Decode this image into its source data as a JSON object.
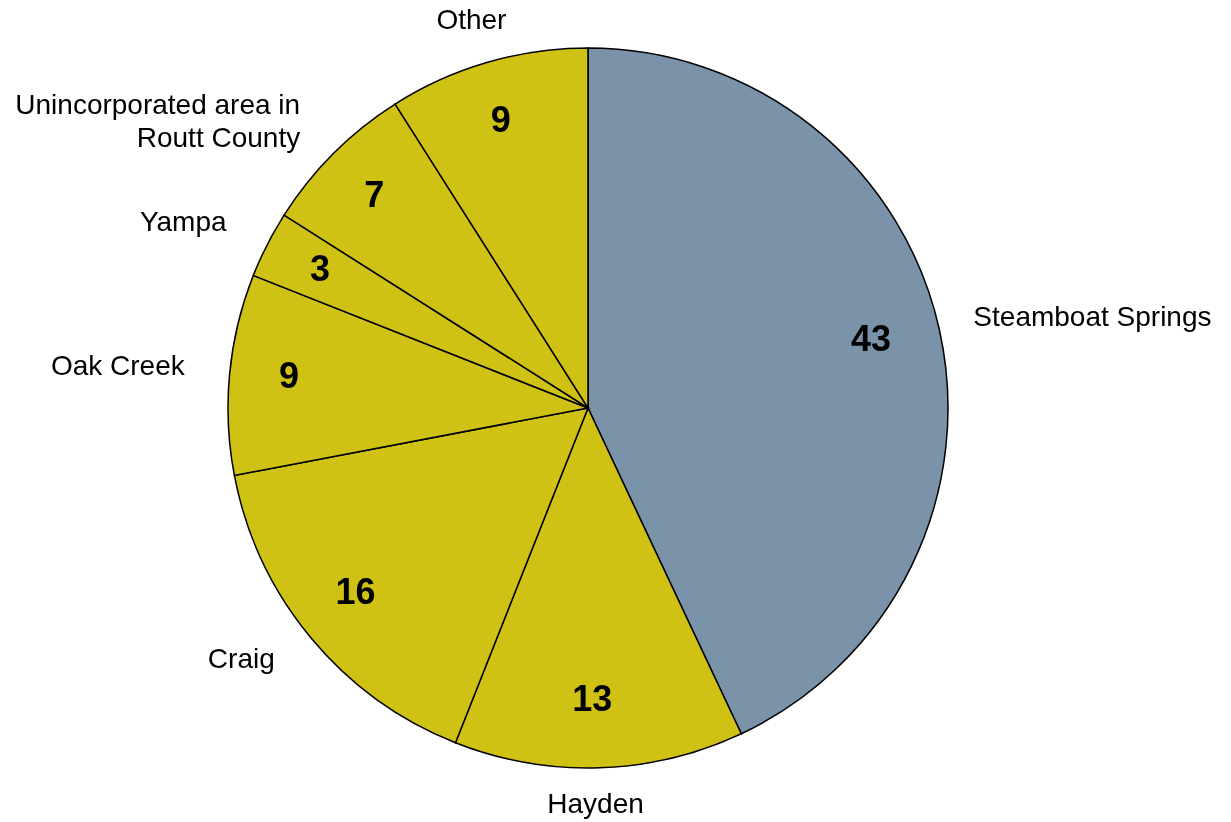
{
  "chart_data": {
    "type": "pie",
    "categories": [
      "Steamboat Springs",
      "Hayden",
      "Craig",
      "Oak Creek",
      "Yampa",
      "Unincorporated area in Routt County",
      "Other"
    ],
    "values": [
      43,
      13,
      16,
      9,
      3,
      7,
      9
    ],
    "colors": [
      "#7b93a8",
      "#cfc214",
      "#cfc214",
      "#cfc214",
      "#cfc214",
      "#cfc214",
      "#cfc214"
    ],
    "data_labels": true,
    "legend": false
  }
}
